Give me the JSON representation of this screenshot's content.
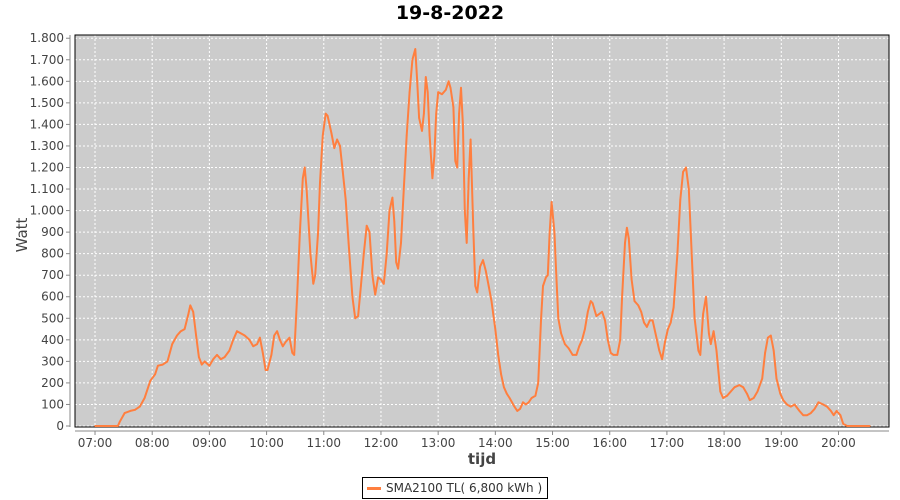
{
  "chart_data": {
    "type": "line",
    "title": "19-8-2022",
    "xlabel": "tijd",
    "ylabel": "Watt",
    "xlim": [
      "06:39",
      "20:53"
    ],
    "ylim": [
      0,
      1815
    ],
    "grid": true,
    "legend_position": "bottom",
    "colors": {
      "plot_background": "#cccccc",
      "series": "#ff7f3f",
      "grid": "#ffffff"
    },
    "x_ticks": [
      "07:00",
      "08:00",
      "09:00",
      "10:00",
      "11:00",
      "12:00",
      "13:00",
      "14:00",
      "15:00",
      "16:00",
      "17:00",
      "18:00",
      "19:00",
      "20:00"
    ],
    "y_ticks": [
      {
        "value": 0,
        "label": "0"
      },
      {
        "value": 100,
        "label": "100"
      },
      {
        "value": 200,
        "label": "200"
      },
      {
        "value": 300,
        "label": "300"
      },
      {
        "value": 400,
        "label": "400"
      },
      {
        "value": 500,
        "label": "500"
      },
      {
        "value": 600,
        "label": "600"
      },
      {
        "value": 700,
        "label": "700"
      },
      {
        "value": 800,
        "label": "800"
      },
      {
        "value": 900,
        "label": "900"
      },
      {
        "value": 1000,
        "label": "1.000"
      },
      {
        "value": 1100,
        "label": "1.100"
      },
      {
        "value": 1200,
        "label": "1.200"
      },
      {
        "value": 1300,
        "label": "1.300"
      },
      {
        "value": 1400,
        "label": "1.400"
      },
      {
        "value": 1500,
        "label": "1.500"
      },
      {
        "value": 1600,
        "label": "1.600"
      },
      {
        "value": 1700,
        "label": "1.700"
      },
      {
        "value": 1800,
        "label": "1.800"
      }
    ],
    "series": [
      {
        "name": "SMA2100 TL( 6,800 kWh )",
        "x": [
          "07:00",
          "07:24",
          "07:26",
          "07:31",
          "07:37",
          "07:42",
          "07:47",
          "07:52",
          "07:58",
          "08:03",
          "08:06",
          "08:11",
          "08:16",
          "08:21",
          "08:26",
          "08:30",
          "08:34",
          "08:38",
          "08:40",
          "08:43",
          "08:46",
          "08:49",
          "08:52",
          "08:55",
          "09:00",
          "09:04",
          "09:08",
          "09:12",
          "09:16",
          "09:21",
          "09:25",
          "09:29",
          "09:33",
          "09:37",
          "09:42",
          "09:46",
          "09:50",
          "09:53",
          "09:56",
          "09:59",
          "10:01",
          "10:05",
          "10:08",
          "10:11",
          "10:14",
          "10:17",
          "10:20",
          "10:24",
          "10:27",
          "10:29",
          "10:32",
          "10:35",
          "10:38",
          "10:40",
          "10:42",
          "10:46",
          "10:49",
          "10:51",
          "10:54",
          "10:56",
          "10:59",
          "11:02",
          "11:04",
          "11:08",
          "11:11",
          "11:14",
          "11:17",
          "11:20",
          "11:23",
          "11:26",
          "11:30",
          "11:33",
          "11:36",
          "11:39",
          "11:42",
          "11:45",
          "11:48",
          "11:51",
          "11:54",
          "11:57",
          "12:00",
          "12:03",
          "12:06",
          "12:09",
          "12:12",
          "12:14",
          "12:16",
          "12:18",
          "12:21",
          "12:24",
          "12:27",
          "12:30",
          "12:33",
          "12:36",
          "12:38",
          "12:40",
          "12:43",
          "12:45",
          "12:47",
          "12:49",
          "12:51",
          "12:54",
          "12:56",
          "12:58",
          "13:00",
          "13:04",
          "13:08",
          "13:11",
          "13:13",
          "13:16",
          "13:18",
          "13:20",
          "13:22",
          "13:24",
          "13:26",
          "13:28",
          "13:30",
          "13:32",
          "13:34",
          "13:37",
          "13:39",
          "13:41",
          "13:44",
          "13:47",
          "13:50",
          "13:53",
          "13:56",
          "14:00",
          "14:03",
          "14:06",
          "14:09",
          "14:12",
          "14:15",
          "14:20",
          "14:23",
          "14:26",
          "14:29",
          "14:32",
          "14:35",
          "14:38",
          "14:42",
          "14:45",
          "14:48",
          "14:50",
          "14:53",
          "14:55",
          "14:57",
          "14:59",
          "15:02",
          "15:04",
          "15:06",
          "15:09",
          "15:13",
          "15:17",
          "15:21",
          "15:25",
          "15:28",
          "15:31",
          "15:34",
          "15:37",
          "15:40",
          "15:42",
          "15:46",
          "15:49",
          "15:52",
          "15:55",
          "15:58",
          "16:01",
          "16:04",
          "16:08",
          "16:11",
          "16:13",
          "16:16",
          "16:18",
          "16:20",
          "16:23",
          "16:26",
          "16:30",
          "16:33",
          "16:36",
          "16:39",
          "16:42",
          "16:45",
          "16:48",
          "16:52",
          "16:55",
          "16:58",
          "17:01",
          "17:04",
          "17:07",
          "17:11",
          "17:14",
          "17:17",
          "17:20",
          "17:23",
          "17:26",
          "17:29",
          "17:33",
          "17:35",
          "17:38",
          "17:41",
          "17:44",
          "17:46",
          "17:49",
          "17:52",
          "17:56",
          "17:59",
          "18:03",
          "18:07",
          "18:11",
          "18:16",
          "18:20",
          "18:24",
          "18:27",
          "18:31",
          "18:35",
          "18:40",
          "18:43",
          "18:46",
          "18:49",
          "18:52",
          "18:55",
          "18:59",
          "19:02",
          "19:06",
          "19:10",
          "19:14",
          "19:19",
          "19:23",
          "19:27",
          "19:31",
          "19:35",
          "19:39",
          "19:44",
          "19:48",
          "19:52",
          "19:55",
          "19:58",
          "20:02",
          "20:05",
          "20:09",
          "20:33"
        ],
        "y": [
          0,
          0,
          20,
          60,
          70,
          75,
          90,
          130,
          210,
          240,
          280,
          285,
          300,
          380,
          420,
          440,
          450,
          520,
          560,
          530,
          420,
          320,
          285,
          300,
          280,
          310,
          330,
          310,
          320,
          350,
          400,
          440,
          430,
          420,
          400,
          370,
          380,
          410,
          340,
          260,
          260,
          330,
          420,
          440,
          400,
          370,
          390,
          410,
          340,
          330,
          600,
          900,
          1150,
          1200,
          1100,
          800,
          660,
          700,
          900,
          1130,
          1350,
          1450,
          1440,
          1360,
          1290,
          1330,
          1300,
          1180,
          1050,
          850,
          600,
          500,
          510,
          650,
          800,
          930,
          900,
          700,
          610,
          690,
          680,
          660,
          800,
          1000,
          1060,
          950,
          760,
          730,
          850,
          1100,
          1350,
          1550,
          1700,
          1750,
          1600,
          1430,
          1370,
          1450,
          1620,
          1550,
          1350,
          1150,
          1250,
          1450,
          1550,
          1540,
          1560,
          1600,
          1570,
          1480,
          1230,
          1200,
          1450,
          1570,
          1400,
          1000,
          850,
          1150,
          1330,
          900,
          650,
          620,
          740,
          770,
          720,
          650,
          580,
          450,
          330,
          240,
          180,
          150,
          130,
          90,
          70,
          80,
          110,
          100,
          110,
          130,
          140,
          200,
          500,
          650,
          690,
          700,
          900,
          1040,
          900,
          700,
          500,
          430,
          380,
          360,
          330,
          330,
          370,
          400,
          450,
          530,
          580,
          570,
          510,
          520,
          530,
          490,
          400,
          340,
          330,
          330,
          400,
          600,
          850,
          920,
          870,
          680,
          580,
          560,
          530,
          480,
          460,
          490,
          490,
          430,
          350,
          310,
          390,
          450,
          480,
          550,
          800,
          1050,
          1180,
          1200,
          1100,
          800,
          500,
          350,
          330,
          520,
          600,
          430,
          380,
          440,
          350,
          160,
          130,
          140,
          160,
          180,
          190,
          180,
          150,
          120,
          130,
          160,
          220,
          340,
          410,
          420,
          350,
          220,
          150,
          120,
          100,
          90,
          100,
          70,
          50,
          50,
          60,
          80,
          110,
          100,
          90,
          70,
          50,
          70,
          50,
          10,
          0,
          0
        ]
      }
    ]
  }
}
